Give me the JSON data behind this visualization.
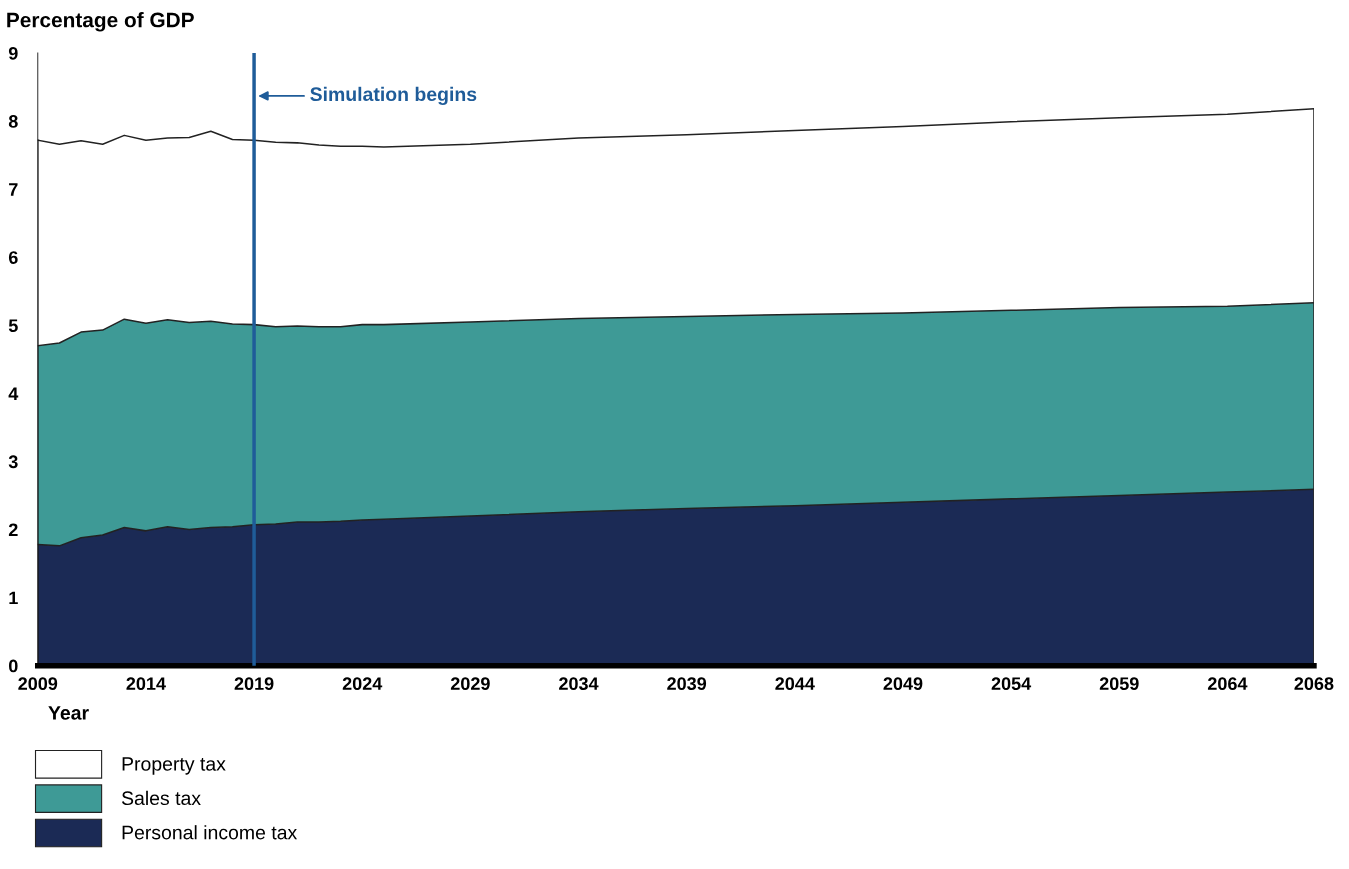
{
  "chart_data": {
    "type": "area",
    "stacked": true,
    "ylabel": "Percentage of GDP",
    "xlabel": "Year",
    "x": [
      2009,
      2010,
      2011,
      2012,
      2013,
      2014,
      2015,
      2016,
      2017,
      2018,
      2019,
      2020,
      2021,
      2022,
      2023,
      2024,
      2025,
      2029,
      2034,
      2039,
      2044,
      2049,
      2054,
      2059,
      2064,
      2068
    ],
    "series": [
      {
        "name": "Personal income tax",
        "color": "#1b2a55",
        "values": [
          1.78,
          1.76,
          1.88,
          1.92,
          2.03,
          1.98,
          2.04,
          2.0,
          2.03,
          2.04,
          2.07,
          2.08,
          2.11,
          2.11,
          2.12,
          2.14,
          2.15,
          2.2,
          2.26,
          2.31,
          2.35,
          2.4,
          2.45,
          2.5,
          2.55,
          2.59
        ]
      },
      {
        "name": "Sales tax",
        "color": "#3e9a96",
        "values": [
          2.92,
          2.98,
          3.02,
          3.01,
          3.06,
          3.05,
          3.04,
          3.04,
          3.03,
          2.98,
          2.94,
          2.9,
          2.88,
          2.87,
          2.86,
          2.87,
          2.86,
          2.85,
          2.84,
          2.82,
          2.81,
          2.78,
          2.77,
          2.76,
          2.73,
          2.74
        ]
      },
      {
        "name": "Property tax",
        "color": "#ffffff",
        "values": [
          3.02,
          2.92,
          2.81,
          2.73,
          2.7,
          2.69,
          2.67,
          2.72,
          2.79,
          2.71,
          2.71,
          2.71,
          2.69,
          2.67,
          2.65,
          2.62,
          2.61,
          2.61,
          2.65,
          2.67,
          2.7,
          2.74,
          2.77,
          2.79,
          2.82,
          2.85
        ]
      }
    ],
    "xlim": [
      2009,
      2068
    ],
    "xticks": [
      2009,
      2014,
      2019,
      2024,
      2029,
      2034,
      2039,
      2044,
      2049,
      2054,
      2059,
      2064,
      2068
    ],
    "ylim": [
      0,
      9
    ],
    "yticks": [
      0,
      1,
      2,
      3,
      4,
      5,
      6,
      7,
      8,
      9
    ],
    "ref_lines": [
      {
        "axis": "x",
        "value": 2019,
        "label": "Simulation begins",
        "color": "#1f5c99"
      }
    ],
    "grid": false,
    "legend": "bottom left"
  }
}
